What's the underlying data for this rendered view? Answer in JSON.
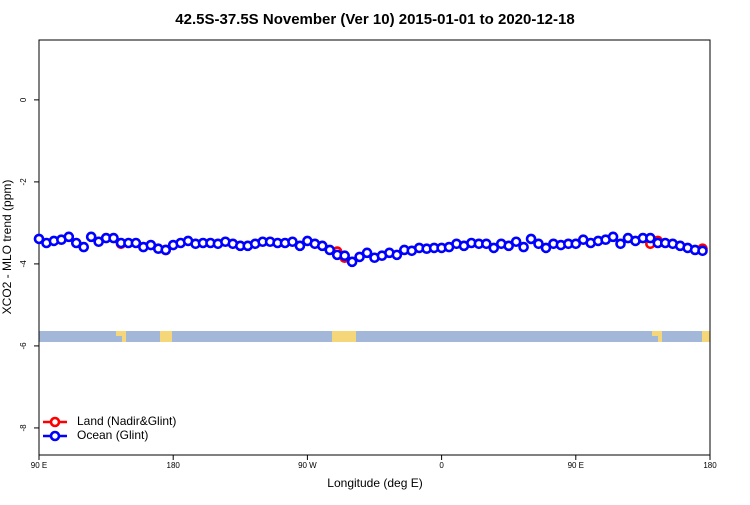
{
  "chart_data": {
    "type": "scatter",
    "title": "42.5S-37.5S November (Ver 10)   2015-01-01 to 2020-12-18",
    "x_label": "Longitude (deg E)",
    "y_label": "XCO2 - MLO trend (ppm)",
    "xlim": [
      90,
      540
    ],
    "ylim": [
      -8.66,
      1.46
    ],
    "xticks": [
      {
        "value": 90,
        "label": "90 E"
      },
      180,
      {
        "value": 270,
        "label": "90 W"
      },
      {
        "value": 360,
        "label": "0"
      },
      {
        "value": 450,
        "label": "90 E"
      },
      {
        "value": 540,
        "label": "180"
      }
    ],
    "yticks": [
      -8,
      -6,
      -4,
      -2,
      0
    ],
    "legend": "bottom-left",
    "series": [
      {
        "name": "Land (Nadir&Glint)",
        "color": "#ff0000",
        "x": [
          145,
          175,
          290,
          295,
          500,
          505,
          535
        ],
        "values": [
          -3.51,
          -3.66,
          -3.7,
          -3.85,
          -3.51,
          -3.44,
          -3.63
        ]
      },
      {
        "name": "Ocean (Glint)",
        "color": "#0000ff",
        "x": [
          90,
          95,
          100,
          105,
          110,
          115,
          120,
          125,
          130,
          135,
          140,
          145,
          150,
          155,
          160,
          165,
          170,
          175,
          180,
          185,
          190,
          195,
          200,
          205,
          210,
          215,
          220,
          225,
          230,
          235,
          240,
          245,
          250,
          255,
          260,
          265,
          270,
          275,
          280,
          285,
          290,
          295,
          300,
          305,
          310,
          315,
          320,
          325,
          330,
          335,
          340,
          345,
          350,
          355,
          360,
          365,
          370,
          375,
          380,
          385,
          390,
          395,
          400,
          405,
          410,
          415,
          420,
          425,
          430,
          435,
          440,
          445,
          450,
          455,
          460,
          465,
          470,
          475,
          480,
          485,
          490,
          495,
          500,
          505,
          510,
          515,
          520,
          525,
          530,
          535
        ],
        "values": [
          -3.39,
          -3.49,
          -3.44,
          -3.41,
          -3.34,
          -3.49,
          -3.59,
          -3.34,
          -3.46,
          -3.37,
          -3.37,
          -3.49,
          -3.49,
          -3.49,
          -3.59,
          -3.54,
          -3.63,
          -3.66,
          -3.54,
          -3.49,
          -3.44,
          -3.51,
          -3.49,
          -3.49,
          -3.51,
          -3.46,
          -3.51,
          -3.56,
          -3.56,
          -3.51,
          -3.46,
          -3.46,
          -3.49,
          -3.49,
          -3.46,
          -3.56,
          -3.44,
          -3.51,
          -3.56,
          -3.66,
          -3.78,
          -3.8,
          -3.95,
          -3.83,
          -3.73,
          -3.85,
          -3.8,
          -3.73,
          -3.78,
          -3.66,
          -3.68,
          -3.61,
          -3.63,
          -3.61,
          -3.61,
          -3.59,
          -3.51,
          -3.56,
          -3.49,
          -3.51,
          -3.51,
          -3.61,
          -3.51,
          -3.56,
          -3.46,
          -3.59,
          -3.39,
          -3.51,
          -3.61,
          -3.51,
          -3.54,
          -3.51,
          -3.51,
          -3.41,
          -3.49,
          -3.44,
          -3.41,
          -3.34,
          -3.51,
          -3.37,
          -3.44,
          -3.37,
          -3.37,
          -3.49,
          -3.49,
          -3.51,
          -3.56,
          -3.61,
          -3.66,
          -3.68
        ]
      }
    ]
  }
}
